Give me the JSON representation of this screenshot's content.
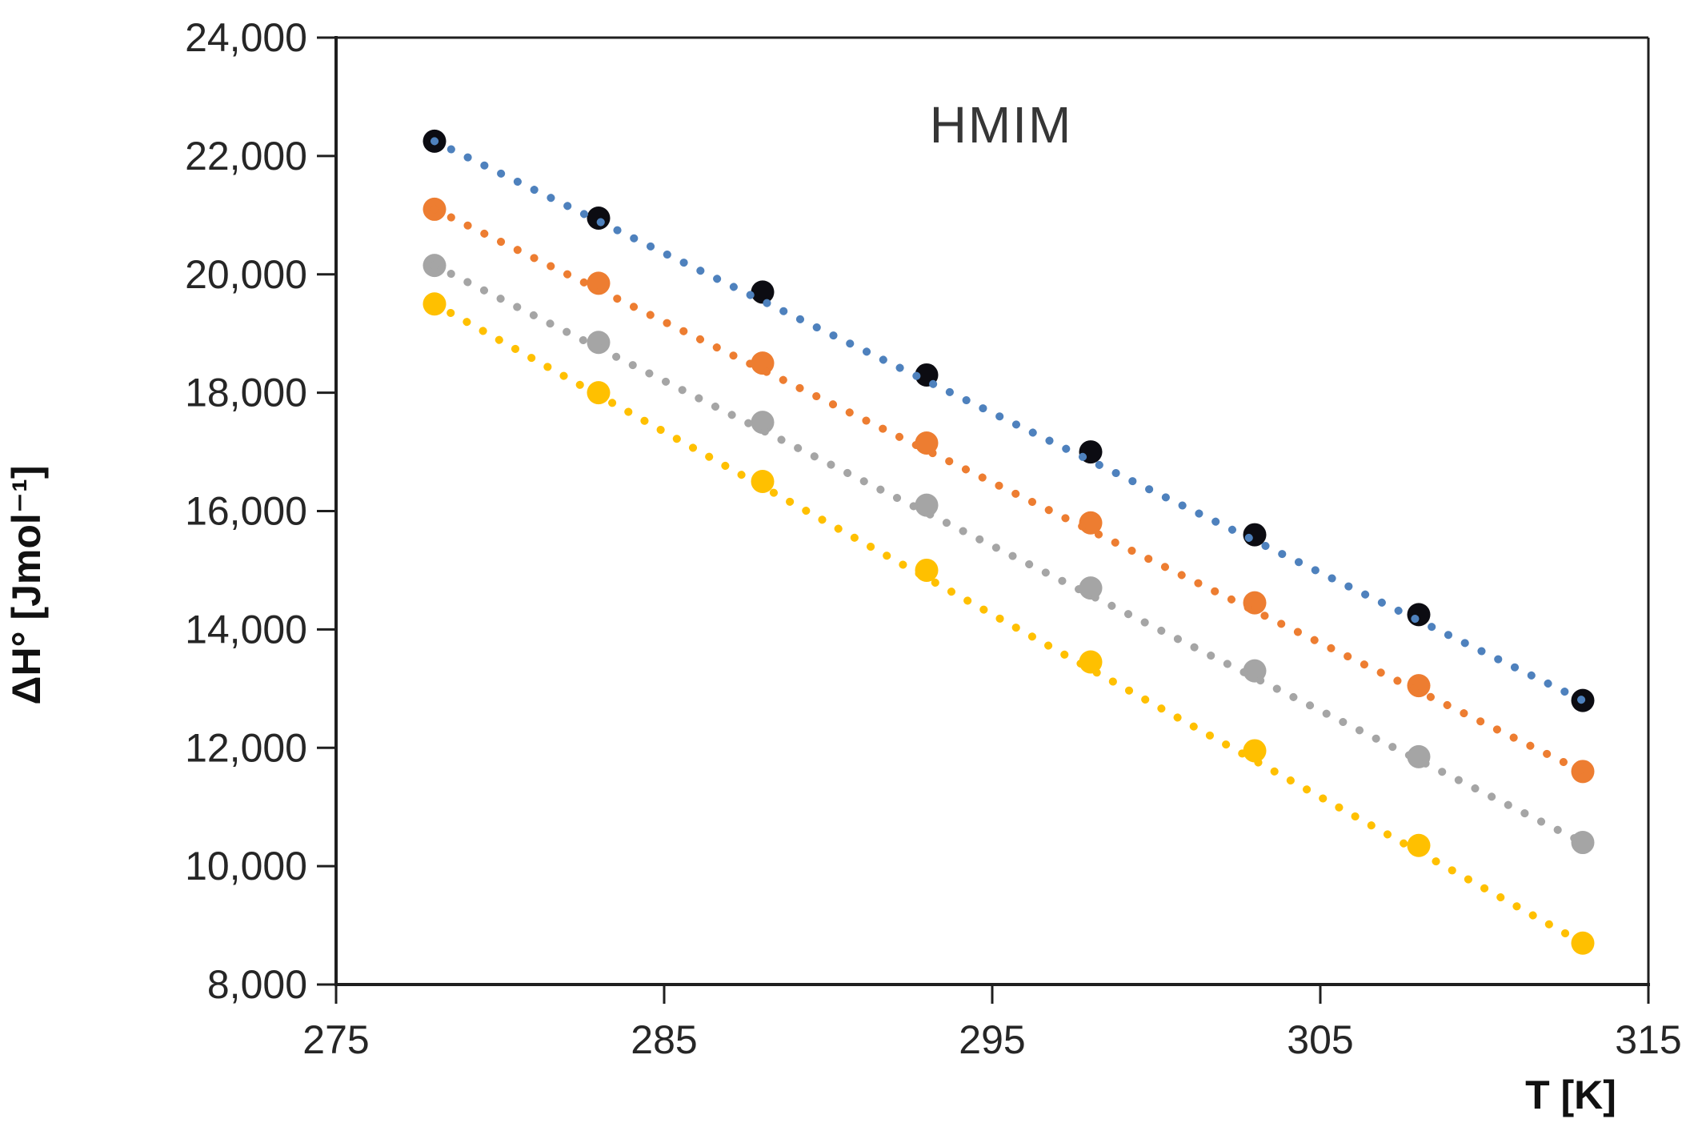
{
  "chart_data": {
    "type": "scatter",
    "title": "HMIM",
    "xlabel": "T [K]",
    "ylabel": "ΔH° [Jmol⁻¹]",
    "xlim": [
      275,
      315
    ],
    "ylim": [
      8000,
      24000
    ],
    "x_ticks": [
      275,
      285,
      295,
      305,
      315
    ],
    "x_tick_labels": [
      "275",
      "285",
      "295",
      "305",
      "315"
    ],
    "y_ticks": [
      8000,
      10000,
      12000,
      14000,
      16000,
      18000,
      20000,
      22000,
      24000
    ],
    "y_tick_labels": [
      "8,000",
      "10,000",
      "12,000",
      "14,000",
      "16,000",
      "18,000",
      "20,000",
      "22,000",
      "24,000"
    ],
    "grid": "off",
    "legend": "none",
    "line_style": "dotted",
    "x": [
      278,
      283,
      288,
      293,
      298,
      303,
      308,
      313
    ],
    "series": [
      {
        "name": "series-black",
        "marker_color": "#0c0c12",
        "line_color": "#4e81bd",
        "values": [
          22250,
          20950,
          19700,
          18300,
          17000,
          15600,
          14250,
          12800
        ]
      },
      {
        "name": "series-orange",
        "marker_color": "#ed7d31",
        "line_color": "#ed7d31",
        "values": [
          21100,
          19850,
          18500,
          17150,
          15800,
          14450,
          13050,
          11600
        ]
      },
      {
        "name": "series-gray",
        "marker_color": "#a5a5a5",
        "line_color": "#a5a5a5",
        "values": [
          20150,
          18850,
          17500,
          16100,
          14700,
          13300,
          11850,
          10400
        ]
      },
      {
        "name": "series-yellow",
        "marker_color": "#ffc000",
        "line_color": "#ffc000",
        "values": [
          19500,
          18000,
          16500,
          15000,
          13450,
          11950,
          10350,
          8700
        ]
      }
    ],
    "axis_color": "#1f1f1f"
  }
}
